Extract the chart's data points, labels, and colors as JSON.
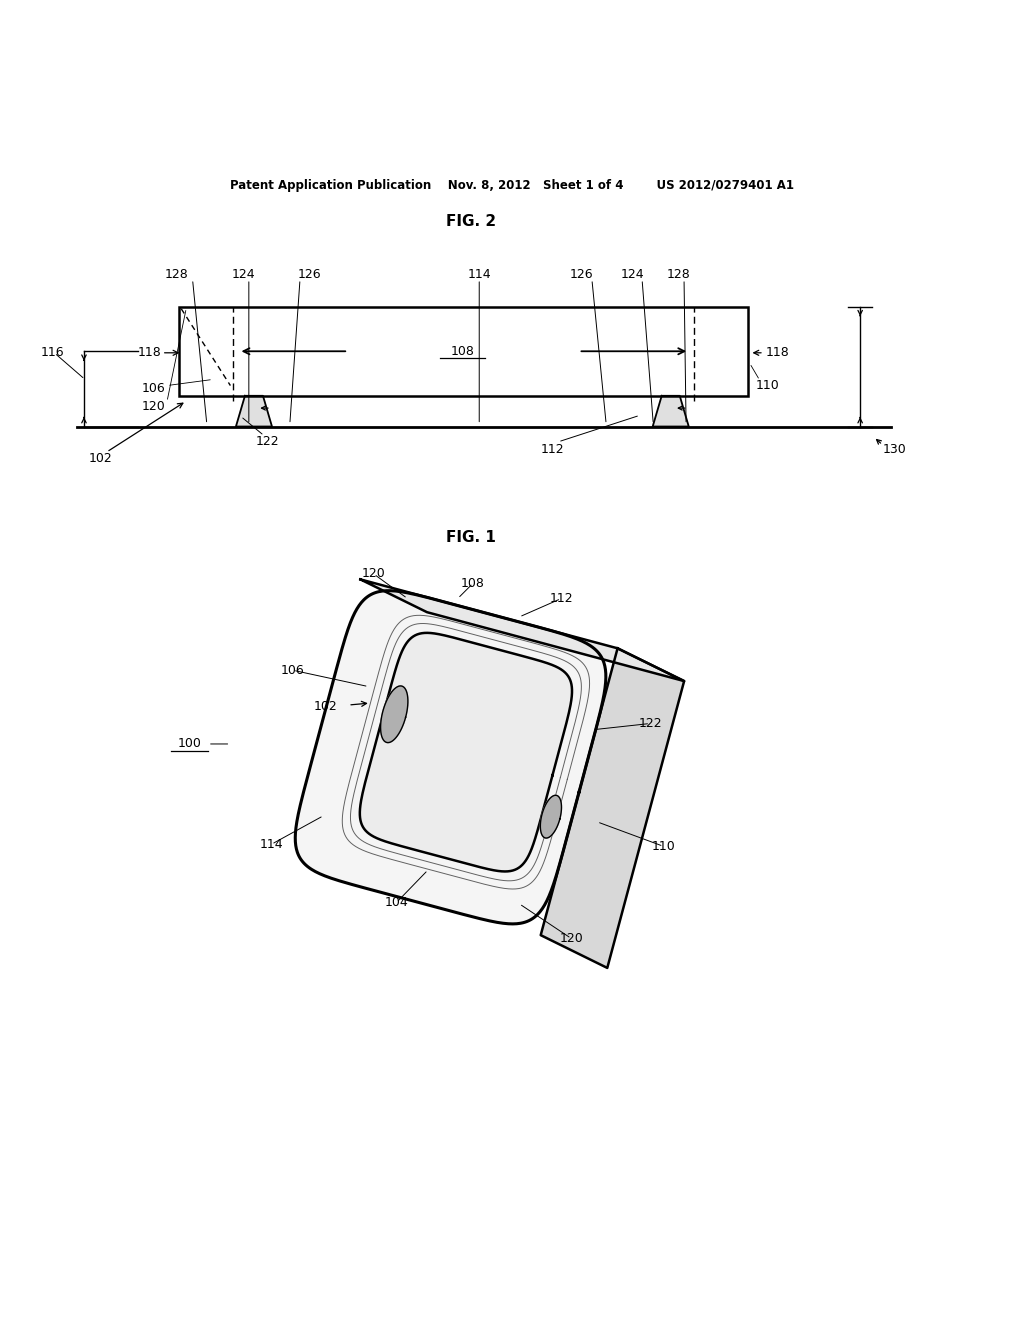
{
  "background_color": "#ffffff",
  "header_text": "Patent Application Publication    Nov. 8, 2012   Sheet 1 of 4        US 2012/0279401 A1",
  "fig1_label": "FIG. 1",
  "fig2_label": "FIG. 2",
  "text_color": "#000000",
  "line_color": "#000000"
}
